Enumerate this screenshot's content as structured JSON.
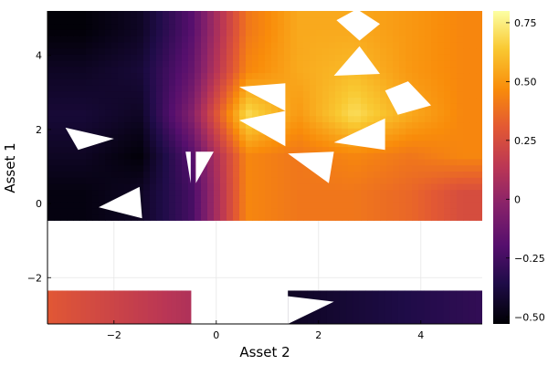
{
  "chart_data": {
    "type": "heatmap",
    "title": "",
    "xlabel": "Asset 2",
    "ylabel": "Asset 1",
    "xlim": [
      -3.3,
      5.2
    ],
    "ylim": [
      -3.25,
      5.2
    ],
    "xticks": [
      -2,
      0,
      2,
      4
    ],
    "yticks": [
      -2,
      0,
      2,
      4
    ],
    "grid": true,
    "colormap": "inferno",
    "colorbar": {
      "range": [
        -0.53,
        0.8
      ],
      "ticks": [
        -0.5,
        -0.25,
        0,
        0.25,
        0.5,
        0.75
      ],
      "tick_labels": [
        "−0.50",
        "−0.25",
        "0",
        "0.25",
        "0.50",
        "0.75"
      ]
    },
    "tick_labels": {
      "x": [
        "−2",
        "0",
        "2",
        "4"
      ],
      "y": [
        "−2",
        "0",
        "2",
        "4"
      ]
    },
    "x_centers": [
      -2.6,
      -1.5,
      -0.5,
      0.6,
      1.6,
      2.7,
      3.8,
      4.8
    ],
    "y_centers": [
      4.7,
      3.6,
      2.4,
      1.3,
      0.3
    ],
    "z": [
      [
        -0.52,
        -0.45,
        -0.2,
        0.4,
        0.55,
        0.55,
        0.5,
        0.45
      ],
      [
        -0.45,
        -0.4,
        -0.15,
        0.45,
        0.55,
        0.6,
        0.5,
        0.45
      ],
      [
        -0.4,
        -0.45,
        -0.05,
        0.7,
        0.5,
        0.7,
        0.55,
        0.45
      ],
      [
        -0.45,
        -0.52,
        -0.2,
        0.45,
        0.4,
        0.45,
        0.4,
        0.45
      ],
      [
        -0.5,
        -0.45,
        -0.25,
        0.45,
        0.4,
        0.4,
        0.35,
        0.25
      ]
    ],
    "bottom_row": {
      "y_range": [
        -3.25,
        -2.35
      ],
      "segments": [
        {
          "x_range": [
            -3.3,
            -0.5
          ],
          "values": [
            0.3,
            0.1
          ]
        },
        {
          "x_range": [
            1.4,
            5.2
          ],
          "values": [
            -0.45,
            -0.3
          ]
        }
      ]
    },
    "nan_regions": {
      "empty_band_y": [
        -2.35,
        -0.45
      ],
      "empty_column_bottom_x": [
        -0.5,
        1.4
      ],
      "triangles": [
        [
          [
            -2.95,
            2.05
          ],
          [
            -2.0,
            1.75
          ],
          [
            -2.7,
            1.45
          ]
        ],
        [
          [
            -1.5,
            0.45
          ],
          [
            -2.3,
            -0.1
          ],
          [
            -1.45,
            -0.4
          ]
        ],
        [
          [
            -0.6,
            1.4
          ],
          [
            -0.5,
            0.55
          ],
          [
            -0.5,
            1.4
          ]
        ],
        [
          [
            -0.4,
            1.4
          ],
          [
            -0.05,
            1.4
          ],
          [
            -0.4,
            0.55
          ]
        ],
        [
          [
            0.45,
            3.15
          ],
          [
            1.35,
            3.25
          ],
          [
            1.35,
            2.5
          ]
        ],
        [
          [
            0.45,
            2.25
          ],
          [
            1.35,
            2.5
          ],
          [
            1.35,
            1.55
          ]
        ],
        [
          [
            1.4,
            1.35
          ],
          [
            2.3,
            1.4
          ],
          [
            2.2,
            0.55
          ]
        ],
        [
          [
            2.35,
            4.95
          ],
          [
            2.75,
            5.25
          ],
          [
            3.2,
            4.85
          ],
          [
            2.8,
            4.4
          ]
        ],
        [
          [
            2.3,
            3.45
          ],
          [
            3.2,
            3.5
          ],
          [
            2.8,
            4.25
          ]
        ],
        [
          [
            3.3,
            3.05
          ],
          [
            3.75,
            3.3
          ],
          [
            4.2,
            2.65
          ],
          [
            3.55,
            2.4
          ]
        ],
        [
          [
            2.3,
            1.65
          ],
          [
            3.3,
            2.3
          ],
          [
            3.3,
            1.45
          ]
        ],
        [
          [
            1.4,
            -2.5
          ],
          [
            1.4,
            -3.25
          ],
          [
            2.3,
            -2.65
          ]
        ]
      ]
    }
  }
}
